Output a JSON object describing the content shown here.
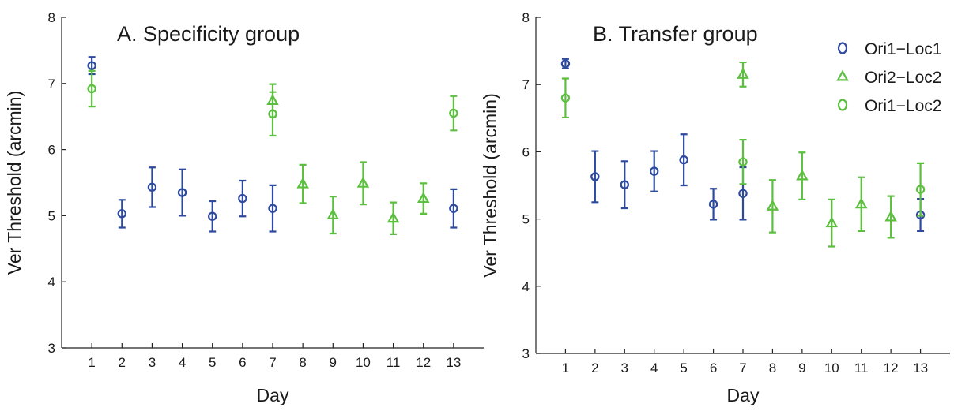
{
  "colors": {
    "ori1_loc1": "#2e4a9e",
    "ori2_loc2": "#5cbf3f",
    "ori1_loc2": "#5cbf3f",
    "axis": "#222222"
  },
  "legend": {
    "items": [
      {
        "label": "Ori1−Loc1",
        "marker": "circle",
        "color_key": "ori1_loc1"
      },
      {
        "label": "Ori2−Loc2",
        "marker": "triangle",
        "color_key": "ori2_loc2"
      },
      {
        "label": "Ori1−Loc2",
        "marker": "circle",
        "color_key": "ori1_loc2"
      }
    ]
  },
  "chart_data": [
    {
      "type": "scatter",
      "title": "A. Specificity group",
      "xlabel": "Day",
      "ylabel": "Ver Threshold (arcmin)",
      "x": [
        1,
        2,
        3,
        4,
        5,
        6,
        7,
        8,
        9,
        10,
        11,
        12,
        13
      ],
      "x_tick_labels": [
        "1",
        "2",
        "3",
        "4",
        "5",
        "6",
        "7",
        "8",
        "9",
        "10",
        "11",
        "12",
        "13"
      ],
      "y_ticks": [
        3,
        4,
        5,
        6,
        7,
        8
      ],
      "y_tick_labels": [
        "3",
        "4",
        "5",
        "6",
        "7",
        "8"
      ],
      "ylim": [
        3,
        8
      ],
      "xlim": [
        0,
        14
      ],
      "legend": false,
      "series": [
        {
          "name": "Ori1−Loc1",
          "marker": "circle",
          "color_key": "ori1_loc1",
          "points": [
            {
              "x": 1,
              "y": 7.27,
              "err": 0.13
            },
            {
              "x": 2,
              "y": 5.03,
              "err": 0.21
            },
            {
              "x": 3,
              "y": 5.43,
              "err": 0.3
            },
            {
              "x": 4,
              "y": 5.35,
              "err": 0.35
            },
            {
              "x": 5,
              "y": 4.99,
              "err": 0.23
            },
            {
              "x": 6,
              "y": 5.26,
              "err": 0.27
            },
            {
              "x": 7,
              "y": 5.11,
              "err": 0.35
            },
            {
              "x": 13,
              "y": 5.11,
              "err": 0.29
            }
          ]
        },
        {
          "name": "Ori2−Loc2",
          "marker": "triangle",
          "color_key": "ori2_loc2",
          "points": [
            {
              "x": 7,
              "y": 6.74,
              "err": 0.25
            },
            {
              "x": 8,
              "y": 5.48,
              "err": 0.29
            },
            {
              "x": 9,
              "y": 5.01,
              "err": 0.28
            },
            {
              "x": 10,
              "y": 5.49,
              "err": 0.32
            },
            {
              "x": 11,
              "y": 4.96,
              "err": 0.24
            },
            {
              "x": 12,
              "y": 5.26,
              "err": 0.23
            }
          ]
        },
        {
          "name": "Ori1−Loc2",
          "marker": "circle",
          "color_key": "ori1_loc2",
          "points": [
            {
              "x": 1,
              "y": 6.92,
              "err": 0.27
            },
            {
              "x": 7,
              "y": 6.54,
              "err": 0.33
            },
            {
              "x": 13,
              "y": 6.55,
              "err": 0.26
            }
          ]
        }
      ]
    },
    {
      "type": "scatter",
      "title": "B. Transfer group",
      "xlabel": "Day",
      "ylabel": "Ver Threshold (arcmin)",
      "x": [
        1,
        2,
        3,
        4,
        5,
        6,
        7,
        8,
        9,
        10,
        11,
        12,
        13
      ],
      "x_tick_labels": [
        "1",
        "2",
        "3",
        "4",
        "5",
        "6",
        "7",
        "8",
        "9",
        "10",
        "11",
        "12",
        "13"
      ],
      "y_ticks": [
        3,
        4,
        5,
        6,
        7,
        8
      ],
      "y_tick_labels": [
        "3",
        "4",
        "5",
        "6",
        "7",
        "8"
      ],
      "ylim": [
        3,
        8
      ],
      "xlim": [
        0,
        14
      ],
      "legend": "top-right",
      "series": [
        {
          "name": "Ori1−Loc1",
          "marker": "circle",
          "color_key": "ori1_loc1",
          "points": [
            {
              "x": 1,
              "y": 7.31,
              "err": 0.07
            },
            {
              "x": 2,
              "y": 5.63,
              "err": 0.38
            },
            {
              "x": 3,
              "y": 5.51,
              "err": 0.35
            },
            {
              "x": 4,
              "y": 5.71,
              "err": 0.3
            },
            {
              "x": 5,
              "y": 5.88,
              "err": 0.38
            },
            {
              "x": 6,
              "y": 5.22,
              "err": 0.23
            },
            {
              "x": 7,
              "y": 5.38,
              "err": 0.39
            },
            {
              "x": 13,
              "y": 5.06,
              "err": 0.24
            }
          ]
        },
        {
          "name": "Ori2−Loc2",
          "marker": "triangle",
          "color_key": "ori2_loc2",
          "points": [
            {
              "x": 7,
              "y": 7.15,
              "err": 0.18
            },
            {
              "x": 8,
              "y": 5.19,
              "err": 0.39
            },
            {
              "x": 9,
              "y": 5.64,
              "err": 0.35
            },
            {
              "x": 10,
              "y": 4.94,
              "err": 0.35
            },
            {
              "x": 11,
              "y": 5.22,
              "err": 0.4
            },
            {
              "x": 12,
              "y": 5.03,
              "err": 0.31
            }
          ]
        },
        {
          "name": "Ori1−Loc2",
          "marker": "circle",
          "color_key": "ori1_loc2",
          "points": [
            {
              "x": 1,
              "y": 6.8,
              "err": 0.29
            },
            {
              "x": 7,
              "y": 5.85,
              "err": 0.33
            },
            {
              "x": 13,
              "y": 5.44,
              "err": 0.39
            }
          ]
        }
      ]
    }
  ]
}
